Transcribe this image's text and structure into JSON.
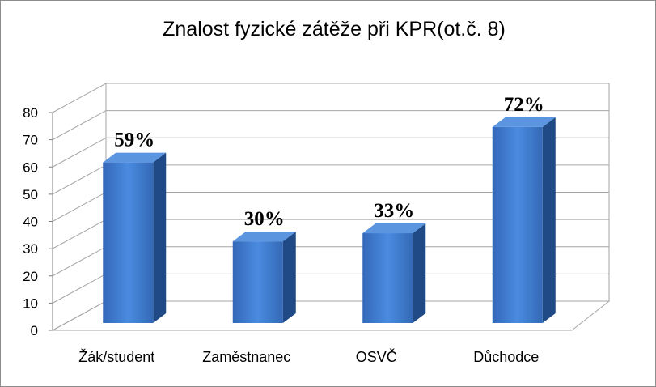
{
  "chart_data": {
    "type": "bar",
    "title": "Znalost fyzické zátěže při KPR(ot.č. 8)",
    "categories": [
      "Žák/student",
      "Zaměstnanec",
      "OSVČ",
      "Důchodce"
    ],
    "values": [
      59,
      30,
      33,
      72
    ],
    "data_labels": [
      "59%",
      "30%",
      "33%",
      "72%"
    ],
    "ylim": [
      0,
      80
    ],
    "yticks": [
      "0",
      "10",
      "20",
      "30",
      "40",
      "50",
      "60",
      "70",
      "80"
    ],
    "grid": true,
    "legend": "none",
    "style": "3d-column",
    "colors": {
      "bar_front": "#3d7dd2",
      "bar_side": "#1f4a86",
      "bar_top": "#5b95e0",
      "grid": "#a6a6a6"
    }
  }
}
